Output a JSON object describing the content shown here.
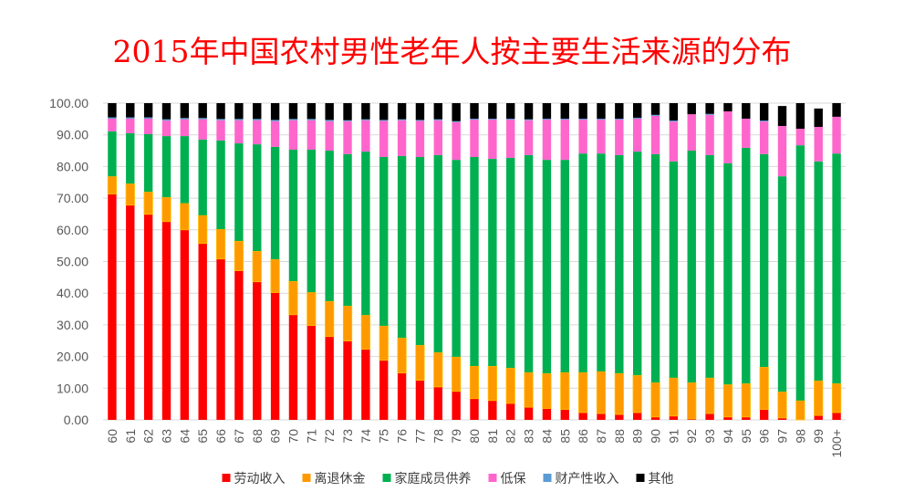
{
  "chart_data": {
    "type": "bar",
    "stacked": true,
    "title": "2015年中国农村男性老年人按主要生活来源的分布",
    "xlabel": "",
    "ylabel": "",
    "ylim": [
      0,
      100
    ],
    "yticks": [
      "0.00",
      "10.00",
      "20.00",
      "30.00",
      "40.00",
      "50.00",
      "60.00",
      "70.00",
      "80.00",
      "90.00",
      "100.00"
    ],
    "grid": true,
    "legend_position": "bottom",
    "categories": [
      "60",
      "61",
      "62",
      "63",
      "64",
      "65",
      "66",
      "67",
      "68",
      "69",
      "70",
      "71",
      "72",
      "73",
      "74",
      "75",
      "76",
      "77",
      "78",
      "79",
      "80",
      "81",
      "82",
      "83",
      "84",
      "85",
      "86",
      "87",
      "88",
      "89",
      "90",
      "91",
      "92",
      "93",
      "94",
      "95",
      "96",
      "97",
      "98",
      "99",
      "100+"
    ],
    "series": [
      {
        "name": "劳动收入",
        "color": "#FF0000",
        "values": [
          71.3,
          67.8,
          64.9,
          62.6,
          60.0,
          55.7,
          50.8,
          47.1,
          43.6,
          40.2,
          33.2,
          29.8,
          26.3,
          24.9,
          22.3,
          18.8,
          14.8,
          12.5,
          10.4,
          9.0,
          6.7,
          6.1,
          5.2,
          4.0,
          3.6,
          3.3,
          2.3,
          2.0,
          1.7,
          2.3,
          0.9,
          1.2,
          0.3,
          2.0,
          0.9,
          0.9,
          3.3,
          0.6,
          0.0,
          1.4,
          2.3
        ]
      },
      {
        "name": "离退休金",
        "color": "#FF9900",
        "values": [
          5.6,
          6.8,
          7.1,
          7.7,
          8.4,
          8.9,
          9.4,
          9.4,
          9.7,
          10.5,
          10.6,
          10.5,
          11.2,
          11.1,
          10.8,
          10.9,
          11.1,
          11.1,
          10.9,
          10.9,
          10.3,
          10.9,
          11.2,
          11.0,
          11.1,
          11.7,
          12.7,
          13.3,
          13.0,
          11.8,
          10.9,
          12.1,
          11.5,
          11.3,
          10.3,
          10.6,
          13.4,
          8.3,
          6.1,
          11.0,
          9.2
        ]
      },
      {
        "name": "家庭成员供养",
        "color": "#00B050",
        "values": [
          14.2,
          15.9,
          18.2,
          19.3,
          21.2,
          23.9,
          28.0,
          30.8,
          33.7,
          35.5,
          41.5,
          45.0,
          47.5,
          47.9,
          51.6,
          53.3,
          57.4,
          59.4,
          62.3,
          62.2,
          66.0,
          65.4,
          66.3,
          68.6,
          67.4,
          67.1,
          69.1,
          68.8,
          68.9,
          70.6,
          72.1,
          68.3,
          73.2,
          70.3,
          69.8,
          74.4,
          67.2,
          68.0,
          80.6,
          69.2,
          72.6
        ]
      },
      {
        "name": "低保",
        "color": "#FF66CC",
        "values": [
          4.0,
          4.6,
          4.9,
          4.9,
          5.3,
          6.4,
          6.4,
          7.3,
          7.6,
          8.1,
          9.3,
          9.3,
          9.3,
          10.4,
          9.9,
          11.4,
          11.3,
          11.4,
          11.0,
          11.9,
          11.8,
          12.4,
          12.1,
          11.0,
          12.7,
          12.7,
          10.7,
          10.7,
          11.2,
          10.4,
          12.1,
          12.6,
          11.5,
          12.7,
          16.4,
          9.2,
          10.3,
          15.9,
          5.2,
          10.9,
          11.6
        ]
      },
      {
        "name": "财产性收入",
        "color": "#5B9BD5",
        "values": [
          0.4,
          0.4,
          0.4,
          0.4,
          0.4,
          0.4,
          0.4,
          0.4,
          0.4,
          0.4,
          0.4,
          0.4,
          0.4,
          0.3,
          0.3,
          0.3,
          0.3,
          0.3,
          0.3,
          0.3,
          0.3,
          0.3,
          0.3,
          0.3,
          0.3,
          0.3,
          0.3,
          0.3,
          0.3,
          0.3,
          0.3,
          0.3,
          0.0,
          0.3,
          0.0,
          0.0,
          0.3,
          0.0,
          0.0,
          0.0,
          0.0
        ]
      },
      {
        "name": "其他",
        "color": "#000000",
        "values": [
          4.5,
          4.5,
          4.5,
          5.1,
          4.7,
          4.7,
          5.0,
          5.0,
          5.0,
          5.3,
          5.0,
          5.0,
          5.3,
          5.4,
          5.1,
          5.3,
          5.1,
          5.3,
          5.1,
          5.7,
          4.9,
          4.9,
          4.9,
          5.1,
          4.9,
          4.9,
          4.9,
          4.9,
          4.9,
          4.6,
          3.7,
          5.5,
          3.5,
          3.4,
          2.6,
          4.9,
          5.5,
          6.3,
          8.1,
          5.8,
          4.3
        ]
      }
    ]
  }
}
